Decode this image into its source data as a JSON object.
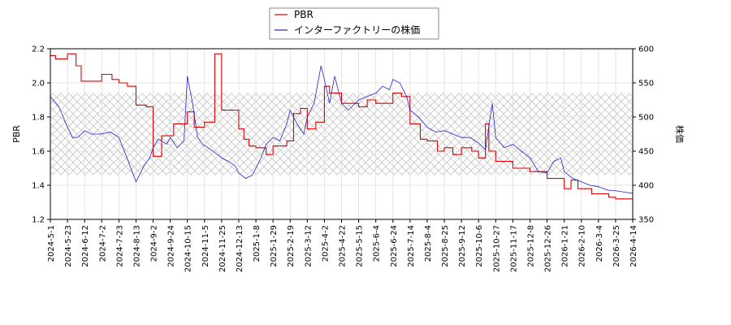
{
  "chart_data": {
    "type": "line",
    "title": "",
    "legend": {
      "placement": "top-center"
    },
    "grid": true,
    "band": {
      "y_right": [
        415,
        535
      ],
      "pattern": "crosshatch"
    },
    "x_ticks": [
      "2024-5-1",
      "2024-5-23",
      "2024-6-12",
      "2024-7-2",
      "2024-7-23",
      "2024-8-13",
      "2024-9-2",
      "2024-9-24",
      "2024-10-15",
      "2024-11-5",
      "2024-11-25",
      "2024-12-13",
      "2025-1-8",
      "2025-1-29",
      "2025-2-19",
      "2025-3-12",
      "2025-4-2",
      "2025-4-22",
      "2025-5-15",
      "2025-6-4",
      "2025-6-24",
      "2025-7-14",
      "2025-8-4",
      "2025-8-25",
      "2025-9-12",
      "2025-10-6",
      "2025-10-27",
      "2025-11-17",
      "2025-12-8",
      "2025-12-26",
      "2026-1-21",
      "2026-2-10",
      "2026-3-4",
      "2026-3-25",
      "2026-4-14"
    ],
    "axes": {
      "left": {
        "label": "PBR",
        "ylim": [
          1.2,
          2.2
        ],
        "ticks": [
          "1.2",
          "1.4",
          "1.6",
          "1.8",
          "2.0",
          "2.2"
        ],
        "values": [
          1.2,
          1.4,
          1.6,
          1.8,
          2.0,
          2.2
        ]
      },
      "right": {
        "label": "株価",
        "ylim": [
          350,
          600
        ],
        "ticks": [
          "350",
          "400",
          "450",
          "500",
          "550",
          "600"
        ],
        "values": [
          350,
          400,
          450,
          500,
          550,
          600
        ]
      }
    },
    "series": [
      {
        "name": "PBR",
        "axis": "left",
        "color": "#dd0000",
        "x_index": [
          0,
          0.3,
          1,
          1.5,
          1.8,
          3,
          3.6,
          4,
          4.5,
          5,
          5.6,
          6,
          6.5,
          7.2,
          8,
          8.4,
          9,
          9.6,
          10,
          11,
          11.3,
          11.6,
          12,
          12.6,
          13,
          13.8,
          14.2,
          14.6,
          15,
          15.5,
          16,
          16.3,
          17,
          17.4,
          18,
          18.5,
          19,
          20,
          20.5,
          21,
          21.6,
          22,
          22.6,
          23,
          23.5,
          24,
          24.6,
          25,
          25.4,
          25.6,
          26,
          27,
          28,
          29,
          30,
          30.4,
          30.8,
          31,
          31.6,
          32,
          32.6,
          33,
          34,
          34.8
        ],
        "values": [
          2.16,
          2.14,
          2.17,
          2.1,
          2.01,
          2.05,
          2.02,
          2.0,
          1.98,
          1.87,
          1.86,
          1.57,
          1.69,
          1.76,
          1.83,
          1.74,
          1.77,
          2.17,
          1.84,
          1.73,
          1.67,
          1.63,
          1.62,
          1.58,
          1.63,
          1.66,
          1.82,
          1.85,
          1.73,
          1.77,
          1.98,
          1.94,
          1.88,
          1.88,
          1.86,
          1.9,
          1.88,
          1.94,
          1.92,
          1.76,
          1.67,
          1.66,
          1.6,
          1.62,
          1.58,
          1.62,
          1.6,
          1.56,
          1.76,
          1.6,
          1.54,
          1.5,
          1.48,
          1.44,
          1.38,
          1.43,
          1.38,
          1.38,
          1.35,
          1.35,
          1.33,
          1.32,
          1.31,
          1.29
        ]
      },
      {
        "name": "インターファクトリーの株価",
        "axis": "right",
        "color": "#2222cc",
        "x_index": [
          0,
          0.5,
          1,
          1.3,
          1.6,
          2,
          2.4,
          3,
          3.5,
          4,
          4.4,
          5,
          5.5,
          5.8,
          6,
          6.3,
          6.8,
          7,
          7.4,
          7.8,
          8,
          8.3,
          8.6,
          8.9,
          9.2,
          9.6,
          10,
          10.4,
          10.8,
          11,
          11.4,
          11.8,
          12,
          12.3,
          12.6,
          13,
          13.4,
          13.8,
          14,
          14.4,
          14.8,
          15,
          15.4,
          15.8,
          16,
          16.3,
          16.6,
          17,
          17.4,
          17.8,
          18,
          18.5,
          19,
          19.4,
          19.8,
          20,
          20.4,
          20.8,
          21,
          21.5,
          22,
          22.5,
          23,
          23.5,
          24,
          24.5,
          25,
          25.4,
          25.8,
          26,
          26.5,
          27,
          27.5,
          28,
          28.5,
          29,
          29.4,
          29.8,
          30,
          30.5,
          31,
          31.5,
          32,
          32.5,
          33,
          33.5,
          34,
          34.5,
          34.8
        ],
        "values": [
          530,
          515,
          485,
          470,
          470,
          480,
          475,
          475,
          478,
          470,
          445,
          405,
          430,
          440,
          455,
          468,
          460,
          470,
          455,
          465,
          560,
          520,
          470,
          460,
          455,
          448,
          440,
          435,
          428,
          418,
          410,
          415,
          425,
          440,
          460,
          470,
          465,
          490,
          510,
          490,
          475,
          500,
          520,
          575,
          555,
          520,
          560,
          520,
          510,
          520,
          525,
          530,
          535,
          545,
          540,
          555,
          550,
          530,
          510,
          500,
          485,
          478,
          480,
          475,
          470,
          470,
          462,
          452,
          520,
          470,
          455,
          460,
          450,
          440,
          420,
          418,
          435,
          440,
          420,
          410,
          405,
          400,
          398,
          393,
          392,
          390,
          388,
          385,
          385
        ]
      }
    ]
  }
}
